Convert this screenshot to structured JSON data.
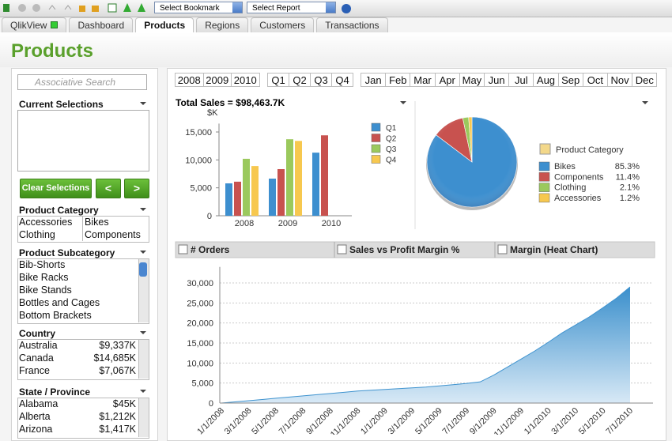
{
  "toolbar": {
    "bookmark": "Select Bookmark",
    "report": "Select Report"
  },
  "tabs": {
    "items": [
      "QlikView",
      "Dashboard",
      "Products",
      "Regions",
      "Customers",
      "Transactions"
    ],
    "active": 2
  },
  "page_title": "Products",
  "search": {
    "placeholder": "Associative Search"
  },
  "current_selections": {
    "title": "Current Selections"
  },
  "buttons": {
    "clear": "Clear Selections",
    "back": "<",
    "forward": ">"
  },
  "product_category": {
    "title": "Product Category",
    "items": [
      "Accessories",
      "Bikes",
      "Clothing",
      "Components"
    ]
  },
  "product_subcategory": {
    "title": "Product Subcategory",
    "items": [
      "Bib-Shorts",
      "Bike Racks",
      "Bike Stands",
      "Bottles and Cages",
      "Bottom Brackets"
    ]
  },
  "country": {
    "title": "Country",
    "rows": [
      [
        "Australia",
        "$9,337K"
      ],
      [
        "Canada",
        "$14,685K"
      ],
      [
        "France",
        "$7,067K"
      ]
    ]
  },
  "state": {
    "title": "State / Province",
    "rows": [
      [
        "Alabama",
        "$45K"
      ],
      [
        "Alberta",
        "$1,212K"
      ],
      [
        "Arizona",
        "$1,417K"
      ]
    ]
  },
  "filters": {
    "years": [
      "2008",
      "2009",
      "2010"
    ],
    "quarters": [
      "Q1",
      "Q2",
      "Q3",
      "Q4"
    ],
    "months": [
      "Jan",
      "Feb",
      "Mar",
      "Apr",
      "May",
      "Jun",
      "Jul",
      "Aug",
      "Sep",
      "Oct",
      "Nov",
      "Dec"
    ]
  },
  "chart_data": [
    {
      "type": "bar",
      "title": "Total Sales = $98,463.7K",
      "y_label": "$K",
      "categories": [
        "2008",
        "2009",
        "2010"
      ],
      "series": [
        {
          "name": "Q1",
          "color": "#3d8fcf",
          "values": [
            5800,
            6650,
            11300
          ]
        },
        {
          "name": "Q2",
          "color": "#c8524f",
          "values": [
            6100,
            8350,
            14400
          ]
        },
        {
          "name": "Q3",
          "color": "#9bc95d",
          "values": [
            10200,
            13700,
            null
          ]
        },
        {
          "name": "Q4",
          "color": "#f7c84f",
          "values": [
            8900,
            13400,
            null
          ]
        }
      ],
      "ylim": [
        0,
        16500
      ],
      "yticks": [
        0,
        {
          "value": 5000,
          "label": "5,000"
        },
        {
          "value": 10000,
          "label": "10,000"
        },
        {
          "value": 15000,
          "label": "15,000"
        }
      ],
      "legend": "right"
    },
    {
      "type": "pie",
      "legend_title": "Product Category",
      "categories": [
        "Bikes",
        "Components",
        "Clothing",
        "Accessories"
      ],
      "values": [
        85.3,
        11.4,
        2.1,
        1.2
      ],
      "value_labels": [
        "85.3%",
        "11.4%",
        "2.1%",
        "1.2%"
      ],
      "colors": [
        "#3d8fcf",
        "#c8524f",
        "#9bc95d",
        "#f7c84f"
      ]
    },
    {
      "type": "area",
      "tabs": [
        "# Orders",
        "Sales vs Profit Margin %",
        "Margin (Heat Chart)"
      ],
      "categories": [
        "1/1/2008",
        null,
        "3/1/2008",
        null,
        "5/1/2008",
        null,
        "7/1/2008",
        null,
        "9/1/2008",
        null,
        "11/1/2008",
        null,
        "1/1/2009",
        null,
        "3/1/2009",
        null,
        "5/1/2009",
        null,
        "7/1/2009",
        null,
        "9/1/2009",
        null,
        "11/1/2009",
        null,
        "1/1/2010",
        null,
        "3/1/2010",
        null,
        "5/1/2010",
        null,
        "7/1/2010"
      ],
      "values": [
        0,
        300,
        600,
        900,
        1200,
        1500,
        1800,
        2100,
        2400,
        2700,
        3000,
        3200,
        3400,
        3600,
        3800,
        4000,
        4300,
        4600,
        4900,
        5300,
        7000,
        9000,
        11000,
        13000,
        15200,
        17500,
        19500,
        21500,
        23800,
        26200,
        29000
      ],
      "color": "#3f93cf",
      "ylim": [
        0,
        34000
      ],
      "yticks": [
        0,
        {
          "value": 5000,
          "label": "5,000"
        },
        {
          "value": 10000,
          "label": "10,000"
        },
        {
          "value": 15000,
          "label": "15,000"
        },
        {
          "value": 20000,
          "label": "20,000"
        },
        {
          "value": 25000,
          "label": "25,000"
        },
        {
          "value": 30000,
          "label": "30,000"
        }
      ],
      "grid": true
    }
  ]
}
